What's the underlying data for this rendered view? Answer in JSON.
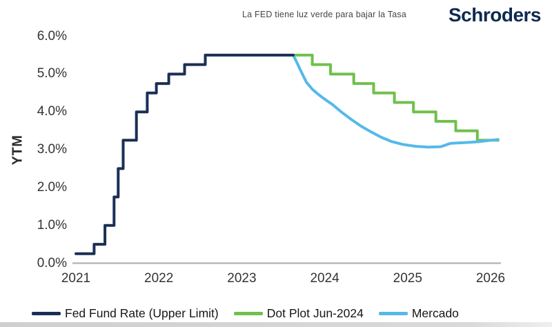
{
  "header": {
    "title": "La FED tiene luz verde para bajar la Tasa",
    "brand": "Schroders"
  },
  "colors": {
    "navy": "#1b2f55",
    "green": "#6fc04c",
    "blue": "#55b9e9",
    "axis_line": "#b9b9b9",
    "tick_text": "#333333"
  },
  "chart_data": {
    "type": "line",
    "title": "La FED tiene luz verde para bajar la Tasa",
    "xlabel": "",
    "ylabel": "YTM",
    "grid": false,
    "legend_position": "bottom",
    "x_axis": {
      "ticks": [
        2021,
        2022,
        2023,
        2024,
        2025,
        2026
      ],
      "min": 2020.95,
      "max": 2026.15
    },
    "y_axis": {
      "min": 0,
      "max": 6,
      "tick_step": 1,
      "tick_labels": [
        "0.0%",
        "1.0%",
        "2.0%",
        "3.0%",
        "4.0%",
        "5.0%",
        "6.0%"
      ]
    },
    "series": [
      {
        "name": "Fed Fund Rate (Upper Limit)",
        "color": "#1b2f55",
        "mode": "step",
        "points": [
          [
            2021.0,
            0.25
          ],
          [
            2021.22,
            0.5
          ],
          [
            2021.35,
            1.0
          ],
          [
            2021.46,
            1.75
          ],
          [
            2021.51,
            2.5
          ],
          [
            2021.57,
            3.25
          ],
          [
            2021.73,
            4.0
          ],
          [
            2021.86,
            4.5
          ],
          [
            2021.97,
            4.75
          ],
          [
            2022.12,
            5.0
          ],
          [
            2022.31,
            5.25
          ],
          [
            2022.56,
            5.5
          ]
        ],
        "end_x": 2023.62
      },
      {
        "name": "Dot Plot Jun-2024",
        "color": "#6fc04c",
        "mode": "step",
        "points": [
          [
            2023.62,
            5.5
          ],
          [
            2023.85,
            5.25
          ],
          [
            2024.07,
            5.0
          ],
          [
            2024.35,
            4.75
          ],
          [
            2024.59,
            4.5
          ],
          [
            2024.84,
            4.25
          ],
          [
            2025.07,
            4.0
          ],
          [
            2025.34,
            3.75
          ],
          [
            2025.58,
            3.5
          ],
          [
            2025.84,
            3.25
          ]
        ],
        "end_x": 2026.09
      },
      {
        "name": "Mercado",
        "color": "#55b9e9",
        "mode": "line",
        "points": [
          [
            2023.62,
            5.5
          ],
          [
            2023.66,
            5.33
          ],
          [
            2023.7,
            5.14
          ],
          [
            2023.74,
            4.96
          ],
          [
            2023.78,
            4.78
          ],
          [
            2023.85,
            4.6
          ],
          [
            2023.93,
            4.45
          ],
          [
            2024.01,
            4.32
          ],
          [
            2024.09,
            4.2
          ],
          [
            2024.2,
            4.0
          ],
          [
            2024.32,
            3.8
          ],
          [
            2024.44,
            3.62
          ],
          [
            2024.56,
            3.47
          ],
          [
            2024.68,
            3.33
          ],
          [
            2024.8,
            3.22
          ],
          [
            2024.94,
            3.14
          ],
          [
            2025.1,
            3.09
          ],
          [
            2025.25,
            3.07
          ],
          [
            2025.4,
            3.08
          ],
          [
            2025.52,
            3.17
          ],
          [
            2025.7,
            3.19
          ],
          [
            2025.85,
            3.21
          ],
          [
            2026.0,
            3.25
          ],
          [
            2026.09,
            3.27
          ]
        ]
      }
    ]
  },
  "legend": {
    "items": [
      {
        "label": "Fed Fund Rate (Upper Limit)",
        "color": "#1b2f55"
      },
      {
        "label": "Dot Plot Jun-2024",
        "color": "#6fc04c"
      },
      {
        "label": "Mercado",
        "color": "#55b9e9"
      }
    ]
  }
}
